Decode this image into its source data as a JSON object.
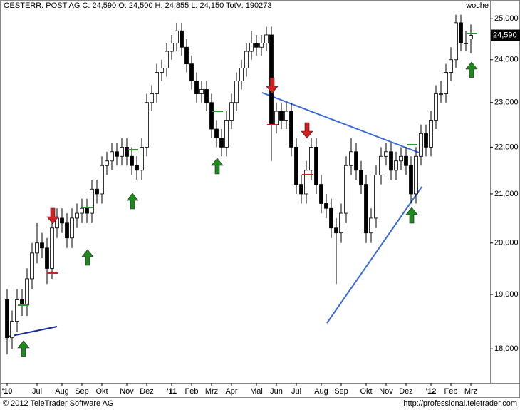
{
  "chart_data": {
    "type": "candlestick",
    "title": "OESTERR. POST AG C: 24,590 O: 24,500 H: 24,855 L: 24,150 TotV: 190273",
    "period": "woche",
    "last_price_label": "24,590",
    "footer_left": "© 2012 TeleTrader Software AG",
    "footer_right": "http://professional.teletrader.com",
    "log_scale": true,
    "up_color": "#ffffff",
    "down_color": "#000000",
    "categories": [
      "'10",
      null,
      null,
      null,
      null,
      null,
      "Jul",
      null,
      null,
      null,
      null,
      "Aug",
      null,
      null,
      null,
      "Sep",
      null,
      null,
      null,
      "Okt",
      null,
      null,
      null,
      null,
      "Nov",
      null,
      null,
      null,
      "Dez",
      null,
      null,
      null,
      null,
      "'11",
      null,
      null,
      null,
      "Feb",
      null,
      null,
      null,
      "Mrz",
      null,
      null,
      null,
      "Apr",
      null,
      null,
      null,
      null,
      "Mai",
      null,
      null,
      null,
      "Jun",
      null,
      null,
      null,
      "Jul",
      null,
      null,
      null,
      null,
      "Aug",
      null,
      null,
      null,
      "Sep",
      null,
      null,
      null,
      null,
      "Okt",
      null,
      null,
      null,
      "Nov",
      null,
      null,
      null,
      "Dez",
      null,
      null,
      null,
      null,
      "'12",
      null,
      null,
      null,
      "Feb",
      null,
      null,
      null,
      "Mrz"
    ],
    "open": [
      18900,
      18200,
      18500,
      18900,
      18800,
      19300,
      19800,
      20000,
      19900,
      19500,
      20300,
      20500,
      20400,
      20100,
      20500,
      20600,
      20700,
      20600,
      21100,
      21000,
      21600,
      21700,
      21900,
      21800,
      22000,
      21800,
      21600,
      21500,
      22000,
      23000,
      23200,
      23700,
      23800,
      24200,
      24400,
      24700,
      24300,
      23900,
      23500,
      23200,
      23300,
      23000,
      22400,
      22200,
      22000,
      22600,
      23000,
      23500,
      23800,
      24200,
      24400,
      24300,
      24400,
      24600,
      22500,
      22800,
      22600,
      22800,
      22000,
      21200,
      21000,
      21500,
      22000,
      21200,
      20800,
      20700,
      20300,
      20200,
      20600,
      21600,
      21900,
      21500,
      21200,
      20200,
      20500,
      21400,
      21800,
      21900,
      21500,
      21700,
      21800,
      21600,
      21000,
      21800,
      22300,
      22000,
      22600,
      23200,
      23200,
      23700,
      24000,
      24900,
      24400,
      24500
    ],
    "high": [
      19100,
      18700,
      19100,
      19100,
      19500,
      20000,
      20400,
      20200,
      20100,
      20500,
      20700,
      20700,
      20600,
      20700,
      20800,
      20900,
      20900,
      21300,
      21300,
      21800,
      21900,
      22100,
      22100,
      22200,
      22200,
      22000,
      21800,
      22200,
      23200,
      23400,
      23900,
      24000,
      24400,
      24600,
      24900,
      24900,
      24500,
      24100,
      23700,
      23500,
      23500,
      23200,
      22600,
      22400,
      22800,
      23200,
      23700,
      24000,
      24400,
      24700,
      24600,
      24600,
      24800,
      24800,
      23000,
      23000,
      23000,
      23000,
      22200,
      21400,
      21700,
      22200,
      22200,
      21400,
      21000,
      20900,
      20500,
      20800,
      21800,
      22200,
      22100,
      21700,
      21400,
      20700,
      21600,
      22000,
      22100,
      22100,
      21900,
      22000,
      22000,
      21800,
      22000,
      22500,
      22500,
      22800,
      23400,
      23500,
      23900,
      24300,
      25100,
      25100,
      24700,
      24855
    ],
    "low": [
      17900,
      18000,
      18300,
      18600,
      18600,
      19100,
      19600,
      19700,
      19200,
      19300,
      20100,
      20200,
      19900,
      19900,
      20300,
      20400,
      20400,
      20400,
      20800,
      20800,
      21400,
      21500,
      21600,
      21600,
      21600,
      21400,
      21300,
      21300,
      21800,
      22800,
      23000,
      23500,
      23600,
      24000,
      24200,
      24100,
      23700,
      23300,
      23000,
      23000,
      22800,
      22200,
      22000,
      21800,
      21800,
      22400,
      22800,
      23300,
      23600,
      24000,
      24100,
      24100,
      24200,
      21700,
      22300,
      22400,
      22400,
      21800,
      21000,
      20800,
      20800,
      21300,
      21000,
      20600,
      20500,
      20100,
      19200,
      20000,
      20400,
      21400,
      21300,
      21000,
      20000,
      20000,
      20300,
      21200,
      21600,
      21300,
      21300,
      21500,
      21400,
      20800,
      20800,
      21600,
      21800,
      21800,
      22400,
      23000,
      23000,
      23500,
      23800,
      24200,
      24200,
      24150
    ],
    "close": [
      18200,
      18500,
      18900,
      18800,
      19300,
      19800,
      20000,
      19900,
      19500,
      20300,
      20500,
      20400,
      20100,
      20500,
      20600,
      20700,
      20600,
      21100,
      21000,
      21600,
      21700,
      21900,
      21800,
      22000,
      21800,
      21600,
      21500,
      22000,
      23000,
      23200,
      23700,
      23800,
      24200,
      24400,
      24700,
      24300,
      23900,
      23500,
      23200,
      23300,
      23000,
      22400,
      22200,
      22000,
      22600,
      23000,
      23500,
      23800,
      24200,
      24400,
      24300,
      24400,
      24600,
      22500,
      22800,
      22600,
      22800,
      22000,
      21200,
      21000,
      21500,
      22000,
      21200,
      20800,
      20700,
      20300,
      20200,
      20600,
      21600,
      21900,
      21500,
      21200,
      20200,
      20500,
      21400,
      21800,
      21900,
      21500,
      21700,
      21800,
      21600,
      21000,
      21800,
      22300,
      22000,
      22600,
      23200,
      23200,
      23700,
      24000,
      24900,
      24400,
      24400,
      24590
    ],
    "ylim": [
      17400,
      25200
    ],
    "yticks": [
      {
        "value": 18000,
        "label": "18,000"
      },
      {
        "value": 19000,
        "label": "19,000"
      },
      {
        "value": 20000,
        "label": "20,000"
      },
      {
        "value": 21000,
        "label": "21,000"
      },
      {
        "value": 22000,
        "label": "22,000"
      },
      {
        "value": 23000,
        "label": "23,000"
      },
      {
        "value": 24000,
        "label": "24,000"
      },
      {
        "value": 25000,
        "label": "25,000"
      }
    ]
  }
}
